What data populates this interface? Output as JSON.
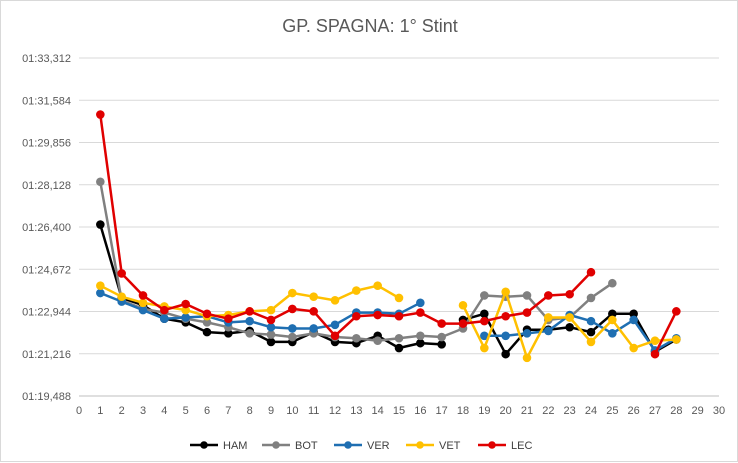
{
  "chart_data": {
    "type": "line",
    "title": "GP. SPAGNA: 1° Stint",
    "xlabel": "",
    "ylabel": "",
    "xlim": [
      0,
      30
    ],
    "ylim": [
      79.488,
      93.312
    ],
    "x_ticks": [
      "0",
      "1",
      "2",
      "3",
      "4",
      "5",
      "6",
      "7",
      "8",
      "9",
      "10",
      "11",
      "12",
      "13",
      "14",
      "15",
      "16",
      "17",
      "18",
      "19",
      "20",
      "21",
      "22",
      "23",
      "24",
      "25",
      "26",
      "27",
      "28",
      "29",
      "30"
    ],
    "y_ticks": [
      {
        "value": 93.312,
        "label": "01:33,312"
      },
      {
        "value": 91.584,
        "label": "01:31,584"
      },
      {
        "value": 89.856,
        "label": "01:29,856"
      },
      {
        "value": 88.128,
        "label": "01:28,128"
      },
      {
        "value": 86.4,
        "label": "01:26,400"
      },
      {
        "value": 84.672,
        "label": "01:24,672"
      },
      {
        "value": 82.944,
        "label": "01:22,944"
      },
      {
        "value": 81.216,
        "label": "01:21,216"
      },
      {
        "value": 79.488,
        "label": "01:19,488"
      }
    ],
    "grid": "horizontal",
    "legend_position": "bottom",
    "series": [
      {
        "name": "HAM",
        "color": "#000000",
        "points": [
          [
            1,
            86.5
          ],
          [
            2,
            83.5
          ],
          [
            3,
            83.2
          ],
          [
            4,
            82.65
          ],
          [
            5,
            82.5
          ],
          [
            6,
            82.1
          ],
          [
            7,
            82.05
          ],
          [
            8,
            82.15
          ],
          [
            9,
            81.7
          ],
          [
            10,
            81.7
          ],
          [
            11,
            82.1
          ],
          [
            12,
            81.7
          ],
          [
            13,
            81.65
          ],
          [
            14,
            81.95
          ],
          [
            15,
            81.45
          ],
          [
            16,
            81.65
          ],
          [
            17,
            81.6
          ],
          null,
          [
            18,
            82.6
          ],
          [
            19,
            82.85
          ],
          [
            20,
            81.2
          ],
          [
            21,
            82.2
          ],
          [
            22,
            82.2
          ],
          [
            23,
            82.3
          ],
          [
            24,
            82.1
          ],
          [
            25,
            82.85
          ],
          [
            26,
            82.85
          ],
          [
            27,
            81.3
          ],
          [
            28,
            81.8
          ]
        ]
      },
      {
        "name": "BOT",
        "color": "#808080",
        "points": [
          [
            1,
            88.25
          ],
          [
            2,
            83.4
          ],
          [
            3,
            83.05
          ],
          [
            4,
            82.9
          ],
          [
            5,
            82.65
          ],
          [
            6,
            82.5
          ],
          [
            7,
            82.3
          ],
          [
            8,
            82.05
          ],
          [
            9,
            82.0
          ],
          [
            10,
            81.9
          ],
          [
            11,
            82.05
          ],
          [
            12,
            81.9
          ],
          [
            13,
            81.85
          ],
          [
            14,
            81.75
          ],
          [
            15,
            81.85
          ],
          [
            16,
            81.95
          ],
          [
            17,
            81.9
          ],
          [
            18,
            82.25
          ],
          [
            19,
            83.6
          ],
          [
            20,
            83.55
          ],
          [
            21,
            83.6
          ],
          [
            22,
            82.6
          ],
          [
            23,
            82.7
          ],
          [
            24,
            83.5
          ],
          [
            25,
            84.1
          ]
        ]
      },
      {
        "name": "VER",
        "color": "#1f6fb2",
        "points": [
          [
            1,
            83.7
          ],
          [
            2,
            83.35
          ],
          [
            3,
            83.0
          ],
          [
            4,
            82.65
          ],
          [
            5,
            82.7
          ],
          [
            6,
            82.75
          ],
          [
            7,
            82.5
          ],
          [
            8,
            82.55
          ],
          [
            9,
            82.3
          ],
          [
            10,
            82.25
          ],
          [
            11,
            82.25
          ],
          [
            12,
            82.4
          ],
          [
            13,
            82.9
          ],
          [
            14,
            82.9
          ],
          [
            15,
            82.85
          ],
          [
            16,
            83.3
          ],
          null,
          [
            19,
            81.95
          ],
          [
            20,
            81.95
          ],
          [
            21,
            82.05
          ],
          [
            22,
            82.15
          ],
          [
            23,
            82.8
          ],
          [
            24,
            82.55
          ],
          [
            25,
            82.05
          ],
          [
            26,
            82.6
          ],
          [
            27,
            81.35
          ],
          [
            28,
            81.85
          ]
        ]
      },
      {
        "name": "VET",
        "color": "#ffc000",
        "points": [
          [
            1,
            84.0
          ],
          [
            2,
            83.55
          ],
          [
            3,
            83.3
          ],
          [
            4,
            83.15
          ],
          [
            5,
            83.0
          ],
          [
            6,
            82.75
          ],
          [
            7,
            82.8
          ],
          [
            8,
            82.95
          ],
          [
            9,
            83.0
          ],
          [
            10,
            83.7
          ],
          [
            11,
            83.55
          ],
          [
            12,
            83.4
          ],
          [
            13,
            83.8
          ],
          [
            14,
            84.0
          ],
          [
            15,
            83.5
          ],
          null,
          [
            18,
            83.2
          ],
          [
            19,
            81.45
          ],
          [
            20,
            83.75
          ],
          [
            21,
            81.05
          ],
          [
            22,
            82.7
          ],
          [
            23,
            82.7
          ],
          [
            24,
            81.7
          ],
          [
            25,
            82.6
          ],
          [
            26,
            81.45
          ],
          [
            27,
            81.75
          ],
          [
            28,
            81.8
          ]
        ]
      },
      {
        "name": "LEC",
        "color": "#e00000",
        "points": [
          [
            1,
            91.0
          ],
          [
            2,
            84.5
          ],
          [
            3,
            83.6
          ],
          [
            4,
            83.0
          ],
          [
            5,
            83.25
          ],
          [
            6,
            82.85
          ],
          [
            7,
            82.65
          ],
          [
            8,
            82.95
          ],
          [
            9,
            82.6
          ],
          [
            10,
            83.05
          ],
          [
            11,
            82.95
          ],
          [
            12,
            81.95
          ],
          [
            13,
            82.75
          ],
          [
            14,
            82.8
          ],
          [
            15,
            82.75
          ],
          [
            16,
            82.9
          ],
          [
            17,
            82.45
          ],
          [
            18,
            82.45
          ],
          [
            19,
            82.55
          ],
          [
            20,
            82.75
          ],
          [
            21,
            82.9
          ],
          [
            22,
            83.6
          ],
          [
            23,
            83.65
          ],
          [
            24,
            84.55
          ],
          null,
          [
            27,
            81.2
          ],
          [
            28,
            82.95
          ]
        ]
      }
    ]
  }
}
